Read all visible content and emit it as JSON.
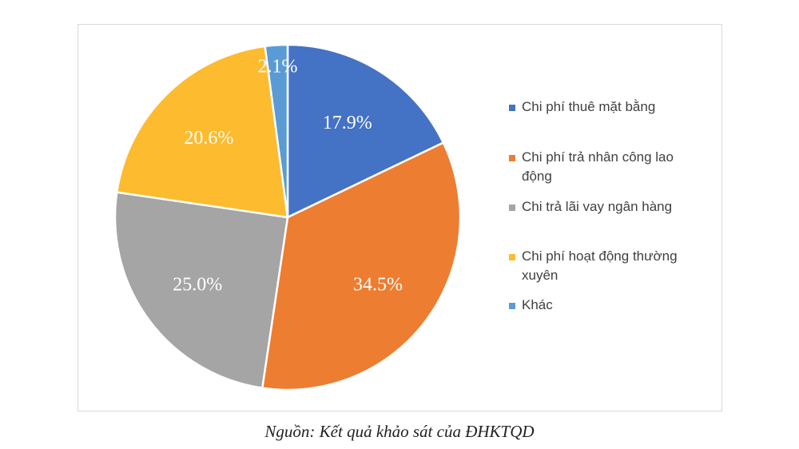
{
  "chart_data": {
    "type": "pie",
    "title": "",
    "slices": [
      {
        "label": "Chi phí thuê mặt bằng",
        "value": 17.9,
        "data_label": "17.9%",
        "color": "#4472C4"
      },
      {
        "label": "Chi phí trả nhân công lao động",
        "value": 34.5,
        "data_label": "34.5%",
        "color": "#ED7D31"
      },
      {
        "label": "Chi trả lãi vay ngân hàng",
        "value": 25.0,
        "data_label": "25.0%",
        "color": "#A5A5A5"
      },
      {
        "label": "Chi phí hoạt động thường xuyên",
        "value": 20.6,
        "data_label": "20.6%",
        "color": "#FDBB2F"
      },
      {
        "label": "Khác",
        "value": 2.1,
        "data_label": "2.1%",
        "color": "#5B9BD5"
      }
    ],
    "legend_position": "right",
    "legend_lines": [
      [
        "Chi phí thuê mặt bằng"
      ],
      [
        "Chi phí trả nhân công lao",
        "động"
      ],
      [
        "Chi trả lãi vay ngân hàng"
      ],
      [
        "Chi phí hoạt động thường",
        "xuyên"
      ],
      [
        "Khác"
      ]
    ]
  },
  "caption": "Nguồn: Kết quả khảo sát của ĐHKTQD"
}
